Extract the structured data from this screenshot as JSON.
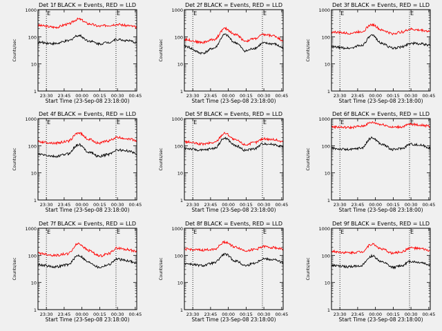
{
  "chart_data": [
    {
      "type": "line",
      "title": "Det 1f BLACK = Events, RED = LLD",
      "ylabel": "Counts/sec",
      "xlabel": "Start Time (23-Sep-08 23:18:00)",
      "ylog": true,
      "ylim": [
        1,
        1000
      ],
      "x_ticks": [
        "23:30",
        "23:45",
        "00:00",
        "00:15",
        "00:30",
        "00:45"
      ],
      "y_ticks": [
        "1",
        "10",
        "100",
        "1000"
      ],
      "markers": [
        "E",
        "E"
      ],
      "series": [
        {
          "color": "#ff0000",
          "x": [
            0,
            18,
            30,
            41,
            52,
            62,
            71,
            80,
            90,
            100
          ],
          "y": [
            260,
            225,
            290,
            450,
            300,
            245,
            265,
            290,
            260,
            230
          ]
        },
        {
          "color": "#000000",
          "x": [
            0,
            18,
            30,
            41,
            52,
            62,
            71,
            80,
            90,
            100
          ],
          "y": [
            62,
            56,
            70,
            112,
            70,
            55,
            62,
            80,
            72,
            62
          ]
        }
      ]
    },
    {
      "type": "line",
      "title": "Det 2f BLACK = Events, RED = LLD",
      "ylabel": "Counts/sec",
      "xlabel": "Start Time (23-Sep-08 23:18:00)",
      "ylog": true,
      "ylim": [
        1,
        1000
      ],
      "x_ticks": [
        "23:30",
        "23:45",
        "00:00",
        "00:15",
        "00:30",
        "00:45"
      ],
      "y_ticks": [
        "1",
        "10",
        "100",
        "1000"
      ],
      "markers": [
        "E",
        "E"
      ],
      "series": [
        {
          "color": "#ff0000",
          "x": [
            0,
            18,
            30,
            41,
            52,
            62,
            71,
            80,
            90,
            100
          ],
          "y": [
            80,
            62,
            80,
            200,
            120,
            70,
            85,
            120,
            110,
            75
          ]
        },
        {
          "color": "#000000",
          "x": [
            0,
            18,
            30,
            41,
            52,
            62,
            71,
            80,
            90,
            100
          ],
          "y": [
            45,
            25,
            38,
            120,
            60,
            30,
            38,
            58,
            55,
            40
          ]
        }
      ]
    },
    {
      "type": "line",
      "title": "Det 3f BLACK = Events, RED = LLD",
      "ylabel": "Counts/sec",
      "xlabel": "Start Time (23-Sep-08 23:18:00)",
      "ylog": true,
      "ylim": [
        1,
        1000
      ],
      "x_ticks": [
        "23:30",
        "23:45",
        "00:00",
        "00:15",
        "00:30",
        "00:45"
      ],
      "y_ticks": [
        "1",
        "10",
        "100",
        "1000"
      ],
      "markers": [
        "E",
        "E"
      ],
      "series": [
        {
          "color": "#ff0000",
          "x": [
            0,
            18,
            30,
            41,
            52,
            62,
            71,
            80,
            90,
            100
          ],
          "y": [
            150,
            135,
            155,
            280,
            170,
            130,
            150,
            190,
            175,
            160
          ]
        },
        {
          "color": "#000000",
          "x": [
            0,
            18,
            30,
            41,
            52,
            62,
            71,
            80,
            90,
            100
          ],
          "y": [
            42,
            38,
            48,
            110,
            55,
            38,
            42,
            58,
            55,
            48
          ]
        }
      ]
    },
    {
      "type": "line",
      "title": "Det 4f BLACK = Events, RED = LLD",
      "ylabel": "Counts/sec",
      "xlabel": "Start Time (23-Sep-08 23:18:00)",
      "ylog": true,
      "ylim": [
        1,
        1000
      ],
      "x_ticks": [
        "23:30",
        "23:45",
        "00:00",
        "00:15",
        "00:30",
        "00:45"
      ],
      "y_ticks": [
        "1",
        "10",
        "100",
        "1000"
      ],
      "markers": [
        "E",
        "E"
      ],
      "series": [
        {
          "color": "#ff0000",
          "x": [
            0,
            18,
            30,
            41,
            52,
            62,
            71,
            80,
            90,
            100
          ],
          "y": [
            140,
            125,
            145,
            300,
            170,
            125,
            150,
            200,
            185,
            155
          ]
        },
        {
          "color": "#000000",
          "x": [
            0,
            18,
            30,
            41,
            52,
            62,
            71,
            80,
            90,
            100
          ],
          "y": [
            48,
            40,
            50,
            110,
            58,
            40,
            48,
            70,
            65,
            52
          ]
        }
      ]
    },
    {
      "type": "line",
      "title": "Det 5f BLACK = Events, RED = LLD",
      "ylabel": "Counts/sec",
      "xlabel": "Start Time (23-Sep-08 23:18:00)",
      "ylog": true,
      "ylim": [
        1,
        1000
      ],
      "x_ticks": [
        "23:30",
        "23:45",
        "00:00",
        "00:15",
        "00:30",
        "00:45"
      ],
      "y_ticks": [
        "1",
        "10",
        "100",
        "1000"
      ],
      "markers": [
        "E",
        "E"
      ],
      "series": [
        {
          "color": "#ff0000",
          "x": [
            0,
            18,
            30,
            41,
            52,
            62,
            71,
            80,
            90,
            100
          ],
          "y": [
            140,
            115,
            130,
            290,
            160,
            110,
            130,
            180,
            170,
            140
          ]
        },
        {
          "color": "#000000",
          "x": [
            0,
            18,
            30,
            41,
            52,
            62,
            71,
            80,
            90,
            100
          ],
          "y": [
            80,
            68,
            80,
            190,
            100,
            68,
            78,
            120,
            112,
            92
          ]
        }
      ]
    },
    {
      "type": "line",
      "title": "Det 6f BLACK = Events, RED = LLD",
      "ylabel": "Counts/sec",
      "xlabel": "Start Time (23-Sep-08 23:18:00)",
      "ylog": true,
      "ylim": [
        1,
        1000
      ],
      "x_ticks": [
        "23:30",
        "23:45",
        "00:00",
        "00:15",
        "00:30",
        "00:45"
      ],
      "y_ticks": [
        "1",
        "10",
        "100",
        "1000"
      ],
      "markers": [
        "E",
        "E"
      ],
      "series": [
        {
          "color": "#ff0000",
          "x": [
            0,
            18,
            30,
            41,
            52,
            62,
            71,
            80,
            90,
            100
          ],
          "y": [
            500,
            470,
            520,
            720,
            600,
            480,
            500,
            620,
            580,
            520
          ]
        },
        {
          "color": "#000000",
          "x": [
            0,
            18,
            30,
            41,
            52,
            62,
            71,
            80,
            90,
            100
          ],
          "y": [
            80,
            72,
            82,
            195,
            110,
            72,
            80,
            115,
            105,
            85
          ]
        }
      ]
    },
    {
      "type": "line",
      "title": "Det 7f BLACK = Events, RED = LLD",
      "ylabel": "Counts/sec",
      "xlabel": "Start Time (23-Sep-08 23:18:00)",
      "ylog": true,
      "ylim": [
        1,
        1000
      ],
      "x_ticks": [
        "23:30",
        "23:45",
        "00:00",
        "00:15",
        "00:30",
        "00:45"
      ],
      "y_ticks": [
        "1",
        "10",
        "100",
        "1000"
      ],
      "markers": [
        "E",
        "E"
      ],
      "series": [
        {
          "color": "#ff0000",
          "x": [
            0,
            18,
            30,
            41,
            52,
            62,
            71,
            80,
            90,
            100
          ],
          "y": [
            120,
            100,
            115,
            270,
            150,
            95,
            115,
            185,
            165,
            140
          ]
        },
        {
          "color": "#000000",
          "x": [
            0,
            18,
            30,
            41,
            52,
            62,
            71,
            80,
            90,
            100
          ],
          "y": [
            45,
            38,
            45,
            100,
            55,
            36,
            45,
            72,
            65,
            52
          ]
        }
      ]
    },
    {
      "type": "line",
      "title": "Det 8f BLACK = Events, RED = LLD",
      "ylabel": "Counts/sec",
      "xlabel": "Start Time (23-Sep-08 23:18:00)",
      "ylog": true,
      "ylim": [
        1,
        1000
      ],
      "x_ticks": [
        "23:30",
        "23:45",
        "00:00",
        "00:15",
        "00:30",
        "00:45"
      ],
      "y_ticks": [
        "1",
        "10",
        "100",
        "1000"
      ],
      "markers": [
        "E",
        "E"
      ],
      "series": [
        {
          "color": "#ff0000",
          "x": [
            0,
            18,
            30,
            41,
            52,
            62,
            71,
            80,
            90,
            100
          ],
          "y": [
            170,
            155,
            170,
            310,
            200,
            150,
            165,
            210,
            195,
            170
          ]
        },
        {
          "color": "#000000",
          "x": [
            0,
            18,
            30,
            41,
            52,
            62,
            71,
            80,
            90,
            100
          ],
          "y": [
            50,
            42,
            52,
            110,
            62,
            42,
            52,
            75,
            70,
            55
          ]
        }
      ]
    },
    {
      "type": "line",
      "title": "Det 9f BLACK = Events, RED = LLD",
      "ylabel": "Counts/sec",
      "xlabel": "Start Time (23-Sep-08 23:18:00)",
      "ylog": true,
      "ylim": [
        1,
        1000
      ],
      "x_ticks": [
        "23:30",
        "23:45",
        "00:00",
        "00:15",
        "00:30",
        "00:45"
      ],
      "y_ticks": [
        "1",
        "10",
        "100",
        "1000"
      ],
      "markers": [
        "E",
        "E"
      ],
      "series": [
        {
          "color": "#ff0000",
          "x": [
            0,
            18,
            30,
            41,
            52,
            62,
            71,
            80,
            90,
            100
          ],
          "y": [
            140,
            125,
            135,
            260,
            165,
            120,
            135,
            190,
            175,
            150
          ]
        },
        {
          "color": "#000000",
          "x": [
            0,
            18,
            30,
            41,
            52,
            62,
            71,
            80,
            90,
            100
          ],
          "y": [
            42,
            38,
            42,
            95,
            55,
            36,
            42,
            60,
            55,
            45
          ]
        }
      ]
    }
  ]
}
